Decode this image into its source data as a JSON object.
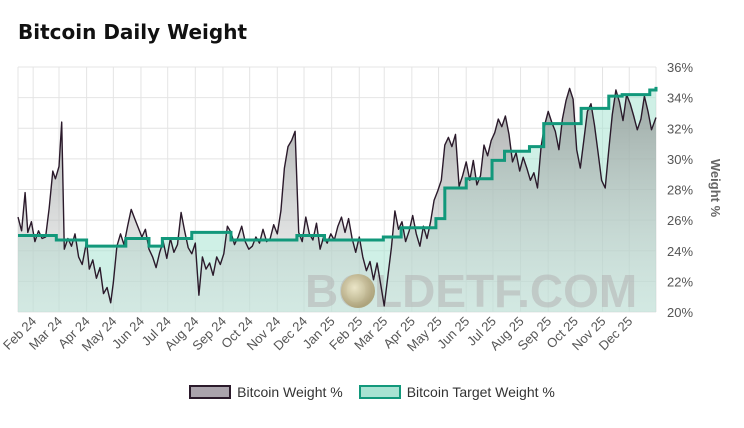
{
  "title": "Bitcoin Daily Weight",
  "watermark": "BOLDETF.COM",
  "colors": {
    "actual_line": "#2b1a2b",
    "target_line": "#12987b",
    "target_fill": "#a8e3d2",
    "grid": "#e4e4e4"
  },
  "chart_data": {
    "type": "line",
    "title": "Bitcoin Daily Weight",
    "xlabel": "",
    "ylabel": "Weight %",
    "ylim": [
      20,
      36
    ],
    "yticks": [
      "36%",
      "34%",
      "32%",
      "30%",
      "28%",
      "26%",
      "24%",
      "22%",
      "20%"
    ],
    "x_range": [
      "2024-01-15",
      "2025-12-31"
    ],
    "xticks": [
      "Feb 24",
      "Mar 24",
      "Apr 24",
      "May 24",
      "Jun 24",
      "Jul 24",
      "Aug 24",
      "Sep 24",
      "Oct 24",
      "Nov 24",
      "Dec 24",
      "Jan 25",
      "Feb 25",
      "Mar 25",
      "Apr 25",
      "May 25",
      "Jun 25",
      "Jul 25",
      "Aug 25",
      "Sep 25",
      "Oct 25",
      "Nov 25",
      "Dec 25"
    ],
    "grid": true,
    "legend_position": "bottom",
    "series": [
      {
        "name": "Bitcoin Weight %",
        "style": "line-filled",
        "points": [
          [
            "2024-01-15",
            26.2
          ],
          [
            "2024-01-19",
            25.3
          ],
          [
            "2024-01-23",
            27.8
          ],
          [
            "2024-01-26",
            25.2
          ],
          [
            "2024-01-30",
            25.9
          ],
          [
            "2024-02-03",
            24.6
          ],
          [
            "2024-02-07",
            25.3
          ],
          [
            "2024-02-11",
            24.8
          ],
          [
            "2024-02-15",
            24.9
          ],
          [
            "2024-02-19",
            26.8
          ],
          [
            "2024-02-23",
            29.2
          ],
          [
            "2024-02-26",
            28.7
          ],
          [
            "2024-03-01",
            29.5
          ],
          [
            "2024-03-04",
            32.4
          ],
          [
            "2024-03-07",
            24.1
          ],
          [
            "2024-03-11",
            24.8
          ],
          [
            "2024-03-15",
            24.3
          ],
          [
            "2024-03-19",
            25.1
          ],
          [
            "2024-03-23",
            23.6
          ],
          [
            "2024-03-27",
            23.1
          ],
          [
            "2024-04-01",
            24.6
          ],
          [
            "2024-04-04",
            22.8
          ],
          [
            "2024-04-08",
            23.4
          ],
          [
            "2024-04-12",
            22.2
          ],
          [
            "2024-04-16",
            22.9
          ],
          [
            "2024-04-20",
            21.2
          ],
          [
            "2024-04-24",
            21.6
          ],
          [
            "2024-04-28",
            20.6
          ],
          [
            "2024-05-01",
            21.9
          ],
          [
            "2024-05-05",
            24.3
          ],
          [
            "2024-05-09",
            25.1
          ],
          [
            "2024-05-13",
            24.4
          ],
          [
            "2024-05-17",
            25.6
          ],
          [
            "2024-05-21",
            26.7
          ],
          [
            "2024-05-25",
            26.1
          ],
          [
            "2024-05-29",
            25.5
          ],
          [
            "2024-06-02",
            24.9
          ],
          [
            "2024-06-06",
            25.4
          ],
          [
            "2024-06-10",
            24.1
          ],
          [
            "2024-06-14",
            23.6
          ],
          [
            "2024-06-18",
            22.9
          ],
          [
            "2024-06-22",
            23.9
          ],
          [
            "2024-06-26",
            24.6
          ],
          [
            "2024-06-30",
            23.5
          ],
          [
            "2024-07-04",
            24.8
          ],
          [
            "2024-07-08",
            23.9
          ],
          [
            "2024-07-12",
            24.4
          ],
          [
            "2024-07-16",
            26.5
          ],
          [
            "2024-07-20",
            25.3
          ],
          [
            "2024-07-24",
            24.2
          ],
          [
            "2024-07-28",
            23.8
          ],
          [
            "2024-08-01",
            24.5
          ],
          [
            "2024-08-05",
            21.1
          ],
          [
            "2024-08-09",
            23.6
          ],
          [
            "2024-08-13",
            22.8
          ],
          [
            "2024-08-17",
            23.2
          ],
          [
            "2024-08-21",
            22.4
          ],
          [
            "2024-08-25",
            23.6
          ],
          [
            "2024-08-29",
            23.1
          ],
          [
            "2024-09-02",
            23.8
          ],
          [
            "2024-09-06",
            25.6
          ],
          [
            "2024-09-10",
            25.2
          ],
          [
            "2024-09-14",
            24.4
          ],
          [
            "2024-09-18",
            24.9
          ],
          [
            "2024-09-22",
            25.6
          ],
          [
            "2024-09-26",
            24.6
          ],
          [
            "2024-09-30",
            24.1
          ],
          [
            "2024-10-04",
            24.3
          ],
          [
            "2024-10-08",
            24.9
          ],
          [
            "2024-10-12",
            24.5
          ],
          [
            "2024-10-16",
            25.4
          ],
          [
            "2024-10-20",
            24.6
          ],
          [
            "2024-10-24",
            24.8
          ],
          [
            "2024-10-28",
            25.7
          ],
          [
            "2024-11-01",
            25.1
          ],
          [
            "2024-11-05",
            26.6
          ],
          [
            "2024-11-09",
            29.4
          ],
          [
            "2024-11-13",
            30.8
          ],
          [
            "2024-11-17",
            31.2
          ],
          [
            "2024-11-21",
            31.8
          ],
          [
            "2024-11-25",
            25.2
          ],
          [
            "2024-11-29",
            24.6
          ],
          [
            "2024-12-03",
            26.2
          ],
          [
            "2024-12-07",
            25.1
          ],
          [
            "2024-12-11",
            24.7
          ],
          [
            "2024-12-15",
            25.8
          ],
          [
            "2024-12-19",
            24.1
          ],
          [
            "2024-12-23",
            24.9
          ],
          [
            "2024-12-27",
            24.5
          ],
          [
            "2024-12-31",
            25.1
          ],
          [
            "2025-01-04",
            24.7
          ],
          [
            "2025-01-08",
            25.6
          ],
          [
            "2025-01-12",
            26.2
          ],
          [
            "2025-01-16",
            25.2
          ],
          [
            "2025-01-20",
            26.1
          ],
          [
            "2025-01-24",
            24.8
          ],
          [
            "2025-01-28",
            23.9
          ],
          [
            "2025-02-01",
            24.9
          ],
          [
            "2025-02-05",
            23.6
          ],
          [
            "2025-02-09",
            22.7
          ],
          [
            "2025-02-13",
            23.3
          ],
          [
            "2025-02-17",
            22.1
          ],
          [
            "2025-02-21",
            23.2
          ],
          [
            "2025-02-25",
            21.8
          ],
          [
            "2025-03-01",
            20.4
          ],
          [
            "2025-03-05",
            22.3
          ],
          [
            "2025-03-09",
            24.2
          ],
          [
            "2025-03-13",
            26.6
          ],
          [
            "2025-03-17",
            25.4
          ],
          [
            "2025-03-21",
            25.9
          ],
          [
            "2025-03-25",
            24.6
          ],
          [
            "2025-03-29",
            25.3
          ],
          [
            "2025-04-02",
            26.3
          ],
          [
            "2025-04-06",
            25.1
          ],
          [
            "2025-04-10",
            24.3
          ],
          [
            "2025-04-14",
            25.6
          ],
          [
            "2025-04-18",
            24.8
          ],
          [
            "2025-04-22",
            25.9
          ],
          [
            "2025-04-26",
            27.3
          ],
          [
            "2025-04-30",
            27.9
          ],
          [
            "2025-05-04",
            28.6
          ],
          [
            "2025-05-08",
            30.9
          ],
          [
            "2025-05-12",
            31.4
          ],
          [
            "2025-05-16",
            30.8
          ],
          [
            "2025-05-20",
            31.6
          ],
          [
            "2025-05-24",
            28.2
          ],
          [
            "2025-05-28",
            28.9
          ],
          [
            "2025-06-01",
            29.8
          ],
          [
            "2025-06-05",
            28.6
          ],
          [
            "2025-06-09",
            29.9
          ],
          [
            "2025-06-13",
            28.3
          ],
          [
            "2025-06-17",
            28.9
          ],
          [
            "2025-06-21",
            30.9
          ],
          [
            "2025-06-25",
            30.2
          ],
          [
            "2025-06-29",
            31.2
          ],
          [
            "2025-07-03",
            31.7
          ],
          [
            "2025-07-07",
            32.6
          ],
          [
            "2025-07-11",
            32.1
          ],
          [
            "2025-07-15",
            32.8
          ],
          [
            "2025-07-19",
            31.6
          ],
          [
            "2025-07-23",
            29.8
          ],
          [
            "2025-07-27",
            30.4
          ],
          [
            "2025-07-31",
            29.2
          ],
          [
            "2025-08-04",
            30.1
          ],
          [
            "2025-08-08",
            29.4
          ],
          [
            "2025-08-12",
            28.6
          ],
          [
            "2025-08-16",
            29.1
          ],
          [
            "2025-08-20",
            28.1
          ],
          [
            "2025-08-24",
            30.8
          ],
          [
            "2025-08-28",
            32.2
          ],
          [
            "2025-09-01",
            33.1
          ],
          [
            "2025-09-05",
            32.4
          ],
          [
            "2025-09-09",
            31.8
          ],
          [
            "2025-09-13",
            30.6
          ],
          [
            "2025-09-17",
            32.6
          ],
          [
            "2025-09-21",
            33.8
          ],
          [
            "2025-09-25",
            34.6
          ],
          [
            "2025-09-29",
            33.9
          ],
          [
            "2025-10-03",
            30.6
          ],
          [
            "2025-10-07",
            29.4
          ],
          [
            "2025-10-11",
            31.2
          ],
          [
            "2025-10-15",
            33.1
          ],
          [
            "2025-10-19",
            33.6
          ],
          [
            "2025-10-23",
            32.2
          ],
          [
            "2025-10-27",
            30.4
          ],
          [
            "2025-10-31",
            28.6
          ],
          [
            "2025-11-04",
            28.1
          ],
          [
            "2025-11-08",
            30.6
          ],
          [
            "2025-11-12",
            32.9
          ],
          [
            "2025-11-16",
            34.5
          ],
          [
            "2025-11-20",
            33.7
          ],
          [
            "2025-11-24",
            32.5
          ],
          [
            "2025-11-28",
            34.2
          ],
          [
            "2025-12-02",
            33.6
          ],
          [
            "2025-12-06",
            32.8
          ],
          [
            "2025-12-10",
            31.9
          ],
          [
            "2025-12-14",
            32.6
          ],
          [
            "2025-12-18",
            34.1
          ],
          [
            "2025-12-22",
            33.1
          ],
          [
            "2025-12-26",
            31.9
          ],
          [
            "2025-12-31",
            32.7
          ]
        ]
      },
      {
        "name": "Bitcoin Target Weight %",
        "style": "step-filled",
        "points": [
          [
            "2024-01-15",
            25.0
          ],
          [
            "2024-02-27",
            24.7
          ],
          [
            "2024-04-01",
            24.3
          ],
          [
            "2024-05-15",
            24.8
          ],
          [
            "2024-06-10",
            24.3
          ],
          [
            "2024-06-25",
            24.8
          ],
          [
            "2024-07-28",
            25.2
          ],
          [
            "2024-09-10",
            24.7
          ],
          [
            "2024-11-23",
            25.0
          ],
          [
            "2024-12-24",
            24.7
          ],
          [
            "2025-02-28",
            24.9
          ],
          [
            "2025-03-20",
            25.5
          ],
          [
            "2025-04-28",
            26.1
          ],
          [
            "2025-05-08",
            28.1
          ],
          [
            "2025-06-01",
            28.7
          ],
          [
            "2025-06-30",
            29.9
          ],
          [
            "2025-07-14",
            30.5
          ],
          [
            "2025-08-11",
            30.8
          ],
          [
            "2025-08-27",
            32.3
          ],
          [
            "2025-10-08",
            33.3
          ],
          [
            "2025-11-08",
            34.1
          ],
          [
            "2025-11-23",
            34.2
          ],
          [
            "2025-12-24",
            34.5
          ],
          [
            "2025-12-31",
            34.7
          ]
        ]
      }
    ]
  },
  "legend": [
    {
      "label": "Bitcoin Weight %"
    },
    {
      "label": "Bitcoin Target Weight %"
    }
  ]
}
